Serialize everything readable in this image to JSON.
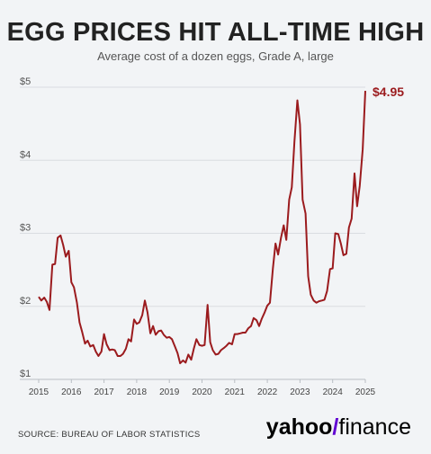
{
  "chart_data": {
    "type": "line",
    "title": "EGG PRICES HIT ALL-TIME HIGH",
    "subtitle": "Average cost of a dozen eggs, Grade A, large",
    "ylabel": "",
    "xlabel": "",
    "ylim": [
      1,
      5
    ],
    "xlim": [
      2015,
      2025
    ],
    "y_ticks": [
      1,
      2,
      3,
      4,
      5
    ],
    "y_tick_labels": [
      "$1",
      "$2",
      "$3",
      "$4",
      "$5"
    ],
    "x_ticks": [
      2015,
      2016,
      2017,
      2018,
      2019,
      2020,
      2021,
      2022,
      2023,
      2024,
      2025
    ],
    "x_tick_labels": [
      "2015",
      "2016",
      "2017",
      "2018",
      "2019",
      "2020",
      "2021",
      "2022",
      "2023",
      "2024",
      "2025"
    ],
    "grid": true,
    "line_color": "#9b1b1e",
    "end_label": "$4.95",
    "series": [
      {
        "x": [
          2015.0,
          2015.08,
          2015.17,
          2015.25,
          2015.33,
          2015.42,
          2015.5,
          2015.58,
          2015.67,
          2015.75,
          2015.83,
          2015.92,
          2016.0,
          2016.08,
          2016.17,
          2016.25,
          2016.33,
          2016.42,
          2016.5,
          2016.58,
          2016.67,
          2016.75,
          2016.83,
          2016.92,
          2017.0,
          2017.08,
          2017.17,
          2017.25,
          2017.33,
          2017.42,
          2017.5,
          2017.58,
          2017.67,
          2017.75,
          2017.83,
          2017.92,
          2018.0,
          2018.08,
          2018.17,
          2018.25,
          2018.33,
          2018.42,
          2018.5,
          2018.58,
          2018.67,
          2018.75,
          2018.83,
          2018.92,
          2019.0,
          2019.08,
          2019.17,
          2019.25,
          2019.33,
          2019.42,
          2019.5,
          2019.58,
          2019.67,
          2019.75,
          2019.83,
          2019.92,
          2020.0,
          2020.08,
          2020.17,
          2020.25,
          2020.33,
          2020.42,
          2020.5,
          2020.58,
          2020.67,
          2020.75,
          2020.83,
          2020.92,
          2021.0,
          2021.08,
          2021.17,
          2021.25,
          2021.33,
          2021.42,
          2021.5,
          2021.58,
          2021.67,
          2021.75,
          2021.83,
          2021.92,
          2022.0,
          2022.08,
          2022.17,
          2022.25,
          2022.33,
          2022.42,
          2022.5,
          2022.58,
          2022.67,
          2022.75,
          2022.83,
          2022.92,
          2023.0,
          2023.08,
          2023.17,
          2023.25,
          2023.33,
          2023.42,
          2023.5,
          2023.58,
          2023.67,
          2023.75,
          2023.83,
          2023.92,
          2024.0,
          2024.08,
          2024.17,
          2024.25,
          2024.33,
          2024.42,
          2024.5,
          2024.58,
          2024.67,
          2024.75,
          2024.83,
          2024.92,
          2025.0
        ],
        "values": [
          2.13,
          2.08,
          2.12,
          2.06,
          1.95,
          2.57,
          2.58,
          2.94,
          2.97,
          2.84,
          2.68,
          2.76,
          2.33,
          2.26,
          2.05,
          1.78,
          1.65,
          1.49,
          1.53,
          1.45,
          1.47,
          1.38,
          1.32,
          1.38,
          1.62,
          1.48,
          1.4,
          1.41,
          1.4,
          1.32,
          1.32,
          1.35,
          1.42,
          1.55,
          1.52,
          1.82,
          1.76,
          1.78,
          1.88,
          2.08,
          1.92,
          1.63,
          1.73,
          1.61,
          1.66,
          1.67,
          1.61,
          1.57,
          1.58,
          1.55,
          1.45,
          1.36,
          1.22,
          1.26,
          1.23,
          1.34,
          1.27,
          1.42,
          1.55,
          1.47,
          1.46,
          1.47,
          2.02,
          1.51,
          1.4,
          1.34,
          1.35,
          1.4,
          1.43,
          1.46,
          1.5,
          1.48,
          1.62,
          1.62,
          1.63,
          1.64,
          1.64,
          1.7,
          1.73,
          1.84,
          1.81,
          1.73,
          1.83,
          1.92,
          2.01,
          2.05,
          2.52,
          2.86,
          2.71,
          2.94,
          3.11,
          2.91,
          3.46,
          3.63,
          4.25,
          4.82,
          4.49,
          3.46,
          3.27,
          2.41,
          2.16,
          2.08,
          2.05,
          2.07,
          2.08,
          2.09,
          2.21,
          2.51,
          2.52,
          3.0,
          2.99,
          2.86,
          2.7,
          2.72,
          3.08,
          3.2,
          3.82,
          3.37,
          3.65,
          4.15,
          4.95
        ]
      }
    ]
  },
  "footer": {
    "source": "SOURCE: BUREAU OF LABOR STATISTICS",
    "brand_left": "yahoo",
    "brand_slash": "/",
    "brand_right": "finance"
  }
}
